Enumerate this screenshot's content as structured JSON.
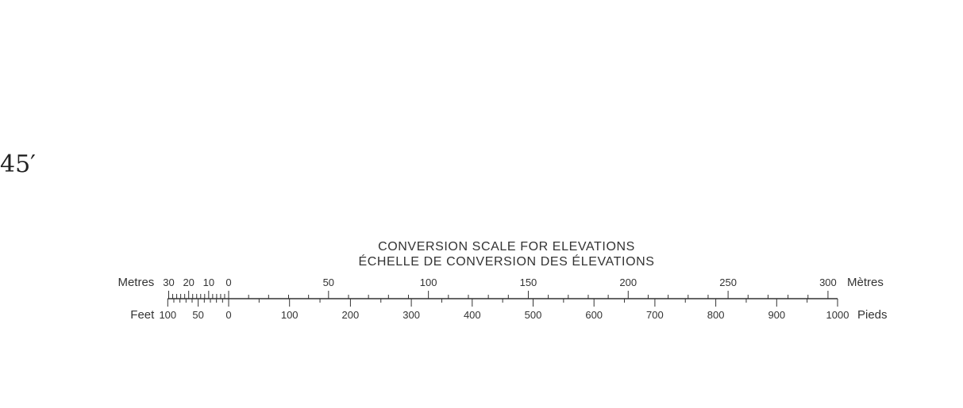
{
  "corner_label": "45′",
  "titles": {
    "en": "CONVERSION SCALE FOR ELEVATIONS",
    "fr": "ÉCHELLE DE CONVERSION DES ÉLEVATIONS"
  },
  "metres": {
    "label_left": "Metres",
    "label_right": "Mètres",
    "negative_labels": [
      30,
      20,
      10,
      0
    ],
    "positive_labels": [
      50,
      100,
      150,
      200,
      250,
      300
    ]
  },
  "feet": {
    "label_left": "Feet",
    "label_right": "Pieds",
    "negative_labels": [
      100,
      50,
      0
    ],
    "positive_labels": [
      100,
      200,
      300,
      400,
      500,
      600,
      700,
      800,
      900,
      1000
    ]
  },
  "colors": {
    "ink": "#333333"
  }
}
